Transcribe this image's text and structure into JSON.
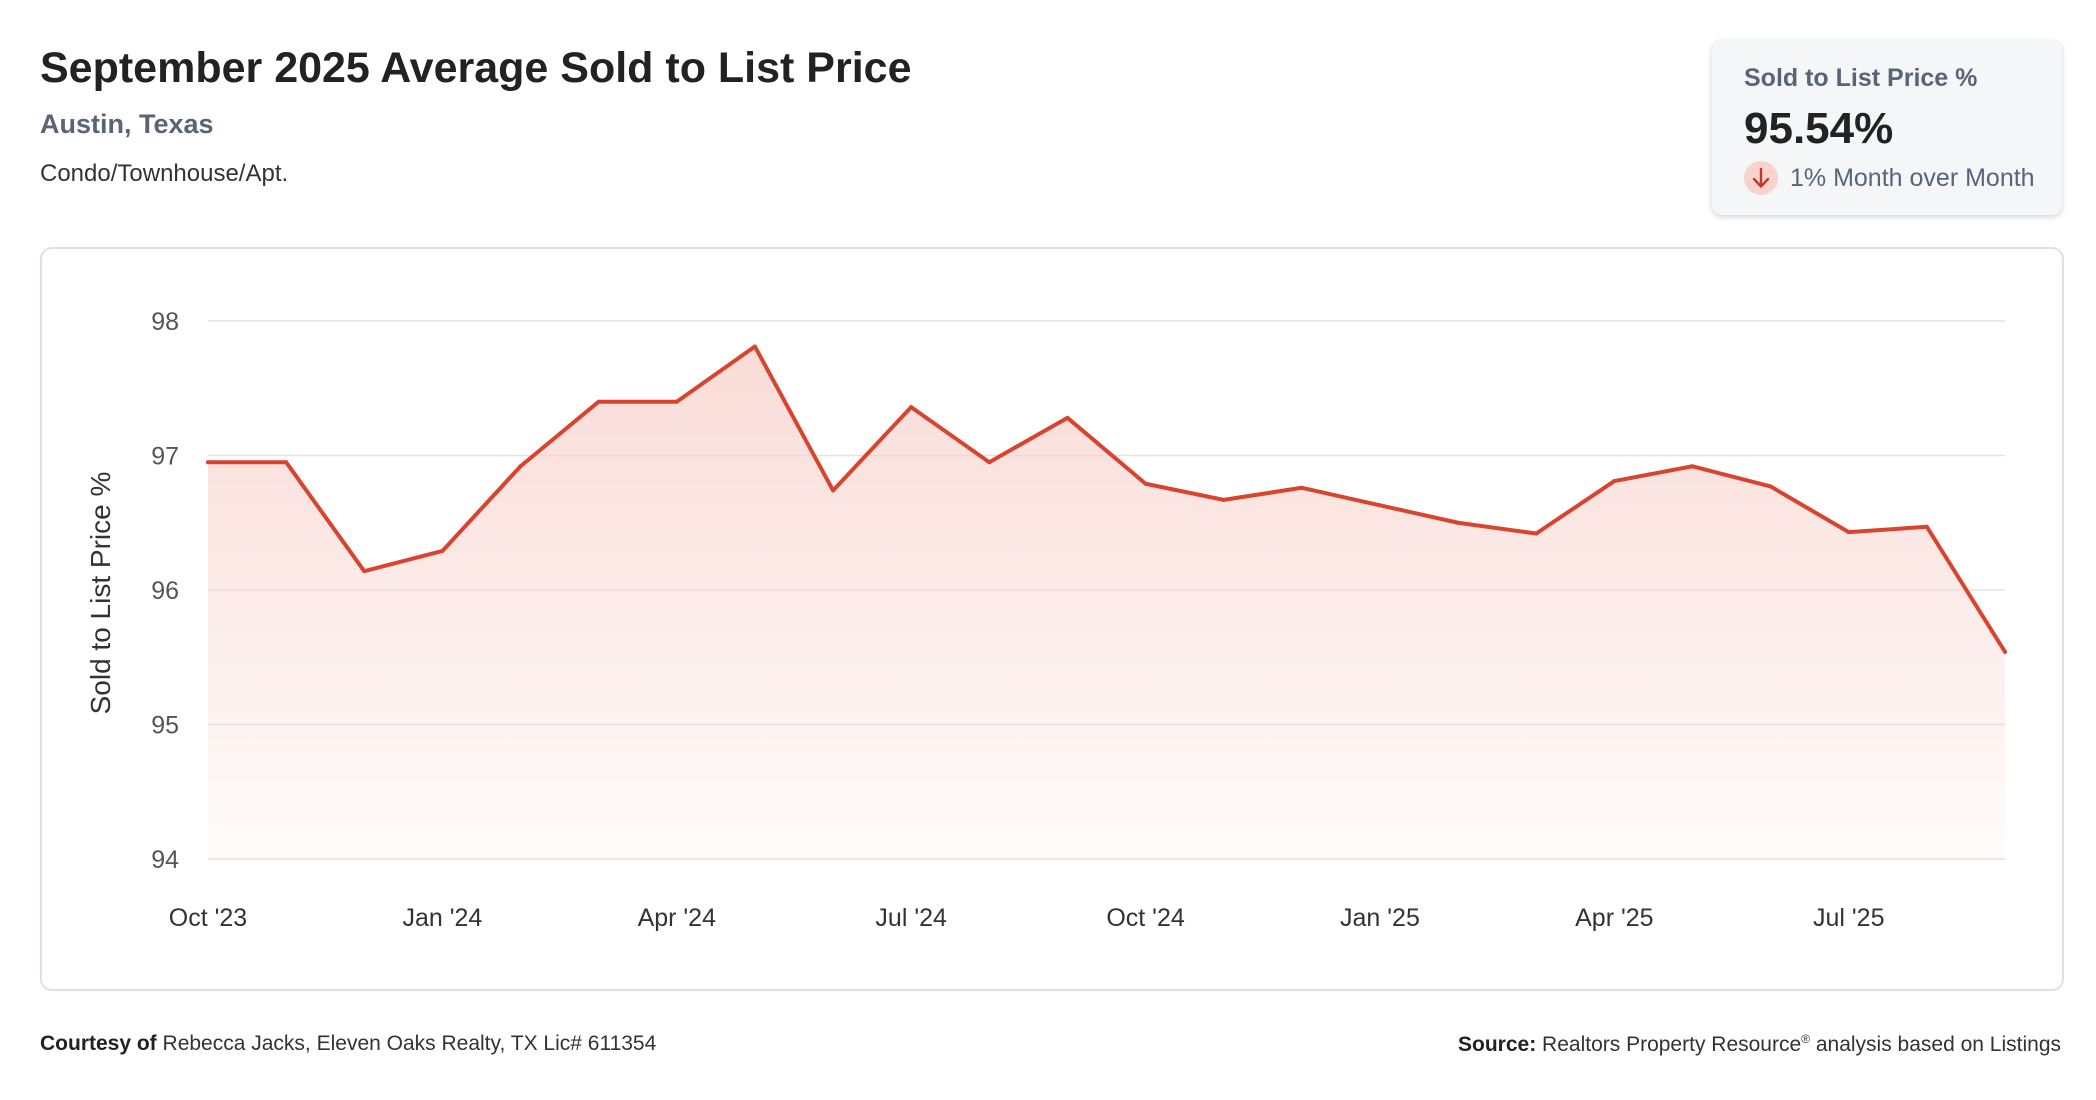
{
  "header": {
    "title": "September 2025 Average Sold to List Price",
    "location": "Austin, Texas",
    "category": "Condo/Townhouse/Apt."
  },
  "kpi": {
    "label": "Sold to List Price %",
    "value": "95.54%",
    "change_text": "1% Month over Month",
    "direction_icon": "arrow-down-icon"
  },
  "colors": {
    "line": "#d9442f",
    "fill": "#f8d3cd",
    "grid": "#e3e3e3",
    "badge": "#f8d3cd"
  },
  "chart_data": {
    "type": "area",
    "title": "",
    "xlabel": "",
    "ylabel": "Sold to List Price %",
    "ylim": [
      94,
      98
    ],
    "yticks": [
      94,
      95,
      96,
      97,
      98
    ],
    "grid": true,
    "x": [
      "Oct '23",
      "Nov '23",
      "Dec '23",
      "Jan '24",
      "Feb '24",
      "Mar '24",
      "Apr '24",
      "May '24",
      "Jun '24",
      "Jul '24",
      "Aug '24",
      "Sep '24",
      "Oct '24",
      "Nov '24",
      "Dec '24",
      "Jan '25",
      "Feb '25",
      "Mar '25",
      "Apr '25",
      "May '25",
      "Jun '25",
      "Jul '25",
      "Aug '25",
      "Sep '25"
    ],
    "xtick_labels": [
      "Oct '23",
      "Jan '24",
      "Apr '24",
      "Jul '24",
      "Oct '24",
      "Jan '25",
      "Apr '25",
      "Jul '25"
    ],
    "series": [
      {
        "values": [
          96.95,
          96.95,
          96.14,
          96.29,
          96.92,
          97.4,
          97.4,
          97.81,
          96.74,
          97.36,
          96.95,
          97.28,
          96.79,
          96.67,
          96.76,
          96.63,
          96.5,
          96.42,
          96.81,
          96.92,
          96.77,
          96.43,
          96.47,
          95.54
        ]
      }
    ]
  },
  "footer": {
    "courtesy_label": "Courtesy of",
    "courtesy_text": "Rebecca Jacks, Eleven Oaks Realty, TX Lic# 611354",
    "source_label": "Source:",
    "source_text_1": "Realtors Property Resource",
    "source_reg": "®",
    "source_text_2": "analysis based on Listings"
  }
}
